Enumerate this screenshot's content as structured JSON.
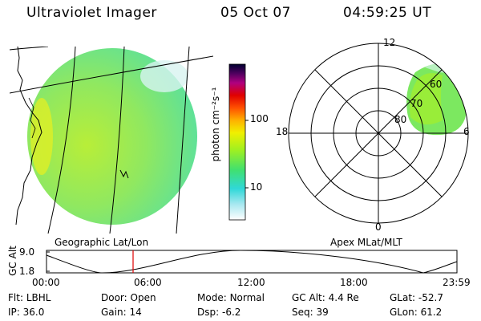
{
  "header": {
    "instrument": "Ultraviolet Imager",
    "date": "05 Oct 07",
    "time": "04:59:25 UT"
  },
  "colorbar": {
    "unit_label": "photon cm⁻²s⁻¹",
    "tick_100": "100",
    "tick_10": "10"
  },
  "polar": {
    "mlt_12": "12",
    "mlt_18": "18",
    "mlt_6": "6",
    "mlt_0": "0",
    "lat_60": "60",
    "lat_70": "70",
    "lat_80": "80"
  },
  "panel_labels": {
    "left": "Geographic Lat/Lon",
    "right": "Apex MLat/MLT"
  },
  "orbit_plot": {
    "ylabel": "GC Alt",
    "ymax": "9.0",
    "ymin": "1.8",
    "x_ticks": [
      "00:00",
      "06:00",
      "12:00",
      "18:00",
      "23:59"
    ]
  },
  "info": {
    "flt_label": "Flt:",
    "flt_value": "LBHL",
    "ip_label": "IP:",
    "ip_value": "36.0",
    "door_label": "Door:",
    "door_value": "Open",
    "gain_label": "Gain:",
    "gain_value": "14",
    "mode_label": "Mode:",
    "mode_value": "Normal",
    "dsp_label": "Dsp:",
    "dsp_value": "-6.2",
    "gcalt_label": "GC Alt:",
    "gcalt_value": "4.4 Re",
    "seq_label": "Seq:",
    "seq_value": "39",
    "glat_label": "GLat:",
    "glat_value": "-52.7",
    "glon_label": "GLon:",
    "glon_value": "61.2"
  }
}
